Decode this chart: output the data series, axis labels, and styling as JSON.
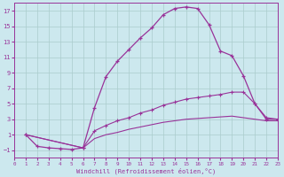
{
  "xlabel": "Windchill (Refroidissement éolien,°C)",
  "bg_color": "#cce8ee",
  "line_color": "#993399",
  "grid_color": "#aacccc",
  "xlim": [
    0,
    23
  ],
  "ylim": [
    -2,
    18
  ],
  "xticks": [
    0,
    1,
    2,
    3,
    4,
    5,
    6,
    7,
    8,
    9,
    10,
    11,
    12,
    13,
    14,
    15,
    16,
    17,
    18,
    19,
    20,
    21,
    22,
    23
  ],
  "yticks": [
    -1,
    1,
    3,
    5,
    7,
    9,
    11,
    13,
    15,
    17
  ],
  "series1": [
    [
      1,
      1.0
    ],
    [
      2,
      -0.5
    ],
    [
      3,
      -0.7
    ],
    [
      4,
      -0.8
    ],
    [
      5,
      -0.9
    ],
    [
      6,
      -0.7
    ],
    [
      7,
      4.5
    ],
    [
      8,
      8.5
    ],
    [
      9,
      10.5
    ],
    [
      10,
      12.0
    ],
    [
      11,
      13.5
    ],
    [
      12,
      14.8
    ],
    [
      13,
      16.5
    ],
    [
      14,
      17.3
    ],
    [
      15,
      17.5
    ],
    [
      16,
      17.3
    ],
    [
      17,
      15.2
    ],
    [
      18,
      11.8
    ],
    [
      19,
      11.2
    ],
    [
      20,
      8.6
    ],
    [
      21,
      5.0
    ],
    [
      22,
      3.0
    ],
    [
      23,
      3.0
    ]
  ],
  "series2": [
    [
      1,
      1.0
    ],
    [
      6,
      -0.7
    ],
    [
      7,
      1.5
    ],
    [
      8,
      2.2
    ],
    [
      9,
      2.8
    ],
    [
      10,
      3.2
    ],
    [
      11,
      3.8
    ],
    [
      12,
      4.2
    ],
    [
      13,
      4.8
    ],
    [
      14,
      5.2
    ],
    [
      15,
      5.6
    ],
    [
      16,
      5.8
    ],
    [
      17,
      6.0
    ],
    [
      18,
      6.2
    ],
    [
      19,
      6.5
    ],
    [
      20,
      6.5
    ],
    [
      21,
      5.0
    ],
    [
      22,
      3.2
    ],
    [
      23,
      3.0
    ]
  ],
  "series3": [
    [
      1,
      1.0
    ],
    [
      6,
      -0.7
    ],
    [
      7,
      0.5
    ],
    [
      8,
      1.0
    ],
    [
      9,
      1.3
    ],
    [
      10,
      1.7
    ],
    [
      11,
      2.0
    ],
    [
      12,
      2.3
    ],
    [
      13,
      2.6
    ],
    [
      14,
      2.8
    ],
    [
      15,
      3.0
    ],
    [
      16,
      3.1
    ],
    [
      17,
      3.2
    ],
    [
      18,
      3.3
    ],
    [
      19,
      3.4
    ],
    [
      20,
      3.2
    ],
    [
      21,
      3.0
    ],
    [
      22,
      2.8
    ],
    [
      23,
      2.8
    ]
  ]
}
